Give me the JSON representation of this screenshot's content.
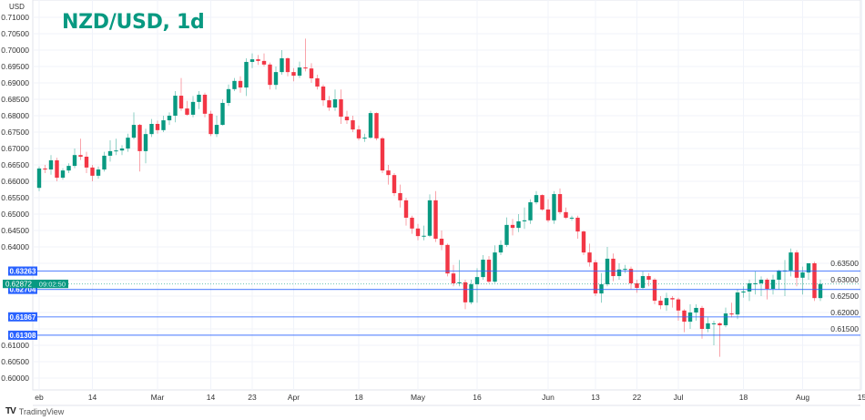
{
  "chart_data": {
    "type": "candlestick",
    "title": "NZD/USD, 1d",
    "ylabel": "USD",
    "ylim": [
      0.5975,
      0.7125
    ],
    "y_ticks": [
      "0.71000",
      "0.70500",
      "0.70000",
      "0.69500",
      "0.69000",
      "0.68500",
      "0.68000",
      "0.67500",
      "0.67000",
      "0.66500",
      "0.66000",
      "0.65500",
      "0.65000",
      "0.64500",
      "0.64000",
      "0.63500",
      "0.63000",
      "0.62500",
      "0.62000",
      "0.61500",
      "0.61000",
      "0.60500",
      "0.60000"
    ],
    "x_ticks": [
      {
        "label": "eb",
        "index": 0
      },
      {
        "label": "14",
        "index": 9
      },
      {
        "label": "Mar",
        "index": 20
      },
      {
        "label": "14",
        "index": 29
      },
      {
        "label": "23",
        "index": 36
      },
      {
        "label": "Apr",
        "index": 43
      },
      {
        "label": "18",
        "index": 54
      },
      {
        "label": "May",
        "index": 64
      },
      {
        "label": "16",
        "index": 74
      },
      {
        "label": "Jun",
        "index": 86
      },
      {
        "label": "13",
        "index": 94
      },
      {
        "label": "22",
        "index": 101
      },
      {
        "label": "Jul",
        "index": 108
      },
      {
        "label": "18",
        "index": 119
      },
      {
        "label": "Aug",
        "index": 129
      },
      {
        "label": "15",
        "index": 139
      }
    ],
    "grid": true,
    "colors": {
      "up": "#089981",
      "down": "#f23645",
      "level_line": "#2962ff",
      "title": "#089981"
    },
    "current_price": {
      "value": "0.62872",
      "countdown": "09:02:50"
    },
    "levels": [
      "0.63263",
      "0.62704",
      "0.61867",
      "0.61308"
    ],
    "ohlc": [
      [
        0.658,
        0.6645,
        0.657,
        0.6639
      ],
      [
        0.6639,
        0.665,
        0.6625,
        0.6636
      ],
      [
        0.6636,
        0.668,
        0.662,
        0.6664
      ],
      [
        0.6664,
        0.6672,
        0.66,
        0.6611
      ],
      [
        0.6611,
        0.664,
        0.6605,
        0.6633
      ],
      [
        0.6633,
        0.6655,
        0.6625,
        0.6647
      ],
      [
        0.6647,
        0.67,
        0.664,
        0.668
      ],
      [
        0.668,
        0.673,
        0.6665,
        0.6675
      ],
      [
        0.6675,
        0.669,
        0.6625,
        0.6642
      ],
      [
        0.6642,
        0.665,
        0.66,
        0.6617
      ],
      [
        0.6617,
        0.6645,
        0.6608,
        0.6636
      ],
      [
        0.6636,
        0.669,
        0.663,
        0.6678
      ],
      [
        0.6678,
        0.6725,
        0.666,
        0.6692
      ],
      [
        0.6692,
        0.673,
        0.668,
        0.6694
      ],
      [
        0.6694,
        0.671,
        0.668,
        0.67
      ],
      [
        0.67,
        0.6745,
        0.669,
        0.6733
      ],
      [
        0.6733,
        0.681,
        0.6728,
        0.6772
      ],
      [
        0.6772,
        0.6775,
        0.663,
        0.6692
      ],
      [
        0.6692,
        0.676,
        0.6655,
        0.6744
      ],
      [
        0.6744,
        0.679,
        0.6735,
        0.6775
      ],
      [
        0.6775,
        0.6785,
        0.6745,
        0.6756
      ],
      [
        0.6756,
        0.68,
        0.675,
        0.6786
      ],
      [
        0.6786,
        0.681,
        0.6772,
        0.68
      ],
      [
        0.68,
        0.6875,
        0.678,
        0.6861
      ],
      [
        0.6861,
        0.6915,
        0.6815,
        0.6822
      ],
      [
        0.6822,
        0.6845,
        0.68,
        0.6803
      ],
      [
        0.6803,
        0.686,
        0.6795,
        0.6842
      ],
      [
        0.6842,
        0.6875,
        0.682,
        0.6864
      ],
      [
        0.6864,
        0.687,
        0.6795,
        0.6806
      ],
      [
        0.6806,
        0.6815,
        0.6738,
        0.6744
      ],
      [
        0.6744,
        0.68,
        0.6735,
        0.6772
      ],
      [
        0.6772,
        0.685,
        0.677,
        0.6839
      ],
      [
        0.6839,
        0.6895,
        0.683,
        0.6881
      ],
      [
        0.6881,
        0.6915,
        0.6875,
        0.6906
      ],
      [
        0.6906,
        0.692,
        0.687,
        0.6886
      ],
      [
        0.6886,
        0.6975,
        0.686,
        0.6964
      ],
      [
        0.6964,
        0.699,
        0.6945,
        0.6972
      ],
      [
        0.6972,
        0.6985,
        0.6955,
        0.6967
      ],
      [
        0.6967,
        0.699,
        0.695,
        0.6956
      ],
      [
        0.6956,
        0.6962,
        0.688,
        0.6894
      ],
      [
        0.6894,
        0.695,
        0.688,
        0.6933
      ],
      [
        0.6933,
        0.7,
        0.6925,
        0.6975
      ],
      [
        0.6975,
        0.6978,
        0.692,
        0.6933
      ],
      [
        0.6933,
        0.6945,
        0.6905,
        0.6922
      ],
      [
        0.6922,
        0.6965,
        0.6915,
        0.6947
      ],
      [
        0.6947,
        0.7035,
        0.6935,
        0.6944
      ],
      [
        0.6944,
        0.696,
        0.69,
        0.6914
      ],
      [
        0.6914,
        0.6925,
        0.688,
        0.6889
      ],
      [
        0.6889,
        0.6895,
        0.683,
        0.6847
      ],
      [
        0.6847,
        0.686,
        0.6815,
        0.6825
      ],
      [
        0.6825,
        0.688,
        0.6815,
        0.685
      ],
      [
        0.685,
        0.688,
        0.6775,
        0.6797
      ],
      [
        0.6797,
        0.6815,
        0.6775,
        0.6786
      ],
      [
        0.6786,
        0.68,
        0.675,
        0.6758
      ],
      [
        0.6758,
        0.677,
        0.6725,
        0.6731
      ],
      [
        0.6731,
        0.6745,
        0.672,
        0.6733
      ],
      [
        0.6733,
        0.6815,
        0.673,
        0.6808
      ],
      [
        0.6808,
        0.681,
        0.6725,
        0.6731
      ],
      [
        0.6731,
        0.6735,
        0.6625,
        0.6633
      ],
      [
        0.6633,
        0.665,
        0.659,
        0.6619
      ],
      [
        0.6619,
        0.6625,
        0.6555,
        0.6564
      ],
      [
        0.6564,
        0.659,
        0.652,
        0.6542
      ],
      [
        0.6542,
        0.655,
        0.6465,
        0.6489
      ],
      [
        0.6489,
        0.6495,
        0.644,
        0.6456
      ],
      [
        0.6456,
        0.647,
        0.642,
        0.6433
      ],
      [
        0.6433,
        0.6465,
        0.642,
        0.6434
      ],
      [
        0.6434,
        0.656,
        0.643,
        0.6542
      ],
      [
        0.6542,
        0.657,
        0.6415,
        0.6425
      ],
      [
        0.6425,
        0.645,
        0.639,
        0.6406
      ],
      [
        0.6406,
        0.641,
        0.631,
        0.6319
      ],
      [
        0.6319,
        0.6345,
        0.628,
        0.6289
      ],
      [
        0.6289,
        0.636,
        0.628,
        0.6292
      ],
      [
        0.6292,
        0.63,
        0.621,
        0.6231
      ],
      [
        0.6231,
        0.63,
        0.6225,
        0.6286
      ],
      [
        0.6286,
        0.6335,
        0.623,
        0.6308
      ],
      [
        0.6308,
        0.6375,
        0.63,
        0.6361
      ],
      [
        0.6361,
        0.6372,
        0.629,
        0.6294
      ],
      [
        0.6294,
        0.6405,
        0.629,
        0.6383
      ],
      [
        0.6383,
        0.642,
        0.6375,
        0.6406
      ],
      [
        0.6406,
        0.649,
        0.64,
        0.6467
      ],
      [
        0.6467,
        0.6485,
        0.6435,
        0.6458
      ],
      [
        0.6458,
        0.65,
        0.6445,
        0.6478
      ],
      [
        0.6478,
        0.652,
        0.6455,
        0.6481
      ],
      [
        0.6481,
        0.6545,
        0.647,
        0.6536
      ],
      [
        0.6536,
        0.657,
        0.653,
        0.6558
      ],
      [
        0.6558,
        0.656,
        0.651,
        0.6514
      ],
      [
        0.6514,
        0.6545,
        0.6475,
        0.6481
      ],
      [
        0.6481,
        0.657,
        0.647,
        0.6561
      ],
      [
        0.6561,
        0.6578,
        0.65,
        0.6506
      ],
      [
        0.6506,
        0.652,
        0.6485,
        0.6489
      ],
      [
        0.6489,
        0.6495,
        0.648,
        0.6489
      ],
      [
        0.6489,
        0.6495,
        0.6425,
        0.6447
      ],
      [
        0.6447,
        0.645,
        0.6375,
        0.6383
      ],
      [
        0.6383,
        0.641,
        0.634,
        0.6353
      ],
      [
        0.6353,
        0.636,
        0.625,
        0.6258
      ],
      [
        0.6258,
        0.632,
        0.623,
        0.6286
      ],
      [
        0.6286,
        0.64,
        0.628,
        0.6364
      ],
      [
        0.6364,
        0.638,
        0.6295,
        0.6311
      ],
      [
        0.6311,
        0.635,
        0.63,
        0.6331
      ],
      [
        0.6331,
        0.6345,
        0.632,
        0.6333
      ],
      [
        0.6333,
        0.634,
        0.627,
        0.6289
      ],
      [
        0.6289,
        0.63,
        0.626,
        0.6275
      ],
      [
        0.6275,
        0.6325,
        0.627,
        0.6311
      ],
      [
        0.6311,
        0.632,
        0.628,
        0.63
      ],
      [
        0.63,
        0.6305,
        0.6225,
        0.6236
      ],
      [
        0.6236,
        0.625,
        0.621,
        0.6222
      ],
      [
        0.6222,
        0.626,
        0.6205,
        0.6244
      ],
      [
        0.6244,
        0.625,
        0.6215,
        0.624
      ],
      [
        0.624,
        0.6245,
        0.6175,
        0.6206
      ],
      [
        0.6206,
        0.621,
        0.614,
        0.6172
      ],
      [
        0.6172,
        0.6225,
        0.615,
        0.62
      ],
      [
        0.62,
        0.6225,
        0.6175,
        0.6214
      ],
      [
        0.6214,
        0.622,
        0.612,
        0.615
      ],
      [
        0.615,
        0.6185,
        0.614,
        0.6167
      ],
      [
        0.6167,
        0.6175,
        0.61,
        0.6167
      ],
      [
        0.6167,
        0.617,
        0.6065,
        0.6161
      ],
      [
        0.6161,
        0.6215,
        0.6155,
        0.6197
      ],
      [
        0.6197,
        0.623,
        0.6185,
        0.6194
      ],
      [
        0.6194,
        0.627,
        0.618,
        0.6261
      ],
      [
        0.6261,
        0.628,
        0.6245,
        0.6264
      ],
      [
        0.6264,
        0.63,
        0.6235,
        0.6289
      ],
      [
        0.6289,
        0.6325,
        0.6255,
        0.6289
      ],
      [
        0.6289,
        0.631,
        0.625,
        0.63
      ],
      [
        0.63,
        0.6305,
        0.624,
        0.6272
      ],
      [
        0.6272,
        0.6315,
        0.6255,
        0.63
      ],
      [
        0.63,
        0.633,
        0.627,
        0.6328
      ],
      [
        0.6328,
        0.636,
        0.625,
        0.6328
      ],
      [
        0.6328,
        0.6395,
        0.631,
        0.6383
      ],
      [
        0.6383,
        0.639,
        0.628,
        0.6306
      ],
      [
        0.6306,
        0.634,
        0.6255,
        0.6322
      ],
      [
        0.6322,
        0.635,
        0.63,
        0.635
      ],
      [
        0.635,
        0.6355,
        0.6235,
        0.6244
      ],
      [
        0.6244,
        0.63,
        0.6235,
        0.6287
      ]
    ]
  },
  "branding": {
    "logo_text": "TradingView"
  }
}
